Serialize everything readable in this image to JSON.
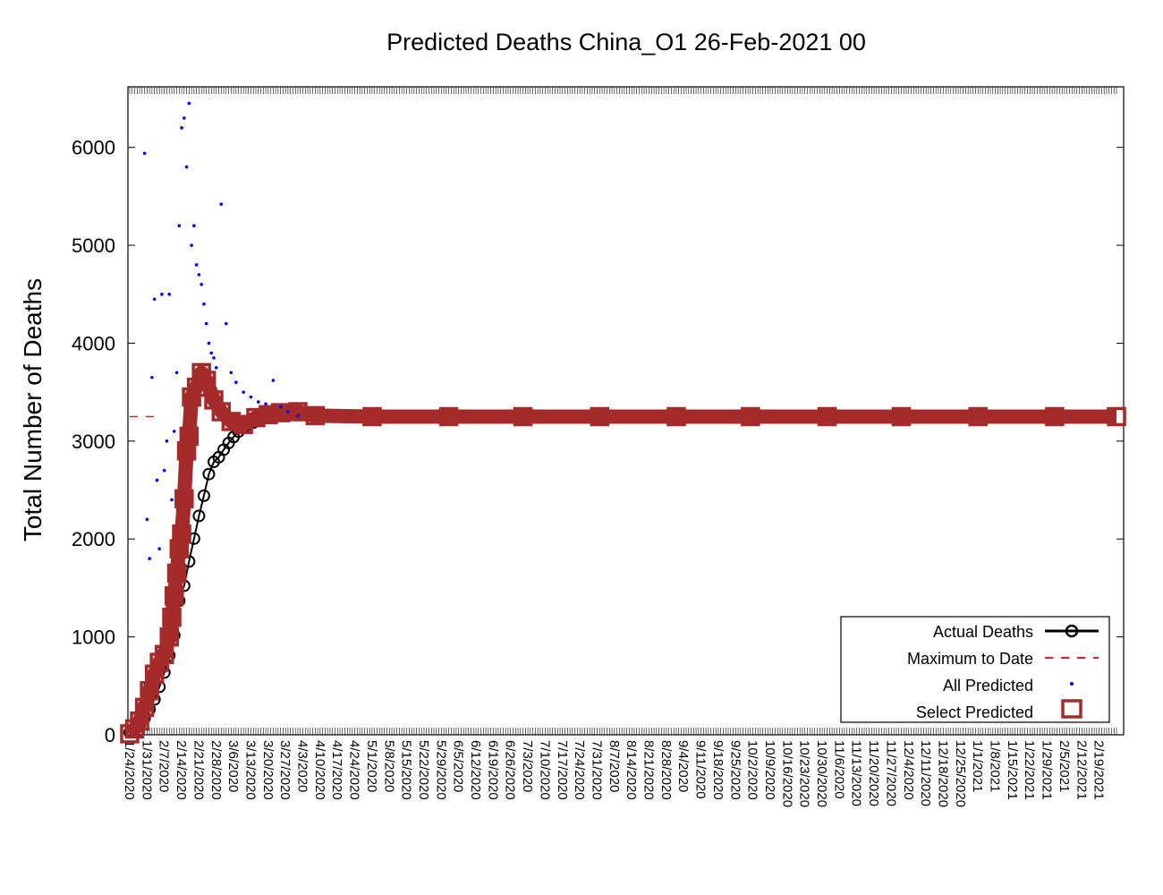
{
  "chart_data": {
    "type": "scatter",
    "title": "Predicted Deaths China_O1 26-Feb-2021 00",
    "ylabel": "Total Number of Deaths",
    "xlabel": "",
    "ylim": [
      0,
      6500
    ],
    "xlim": [
      "1/24/2020",
      "2/26/2021"
    ],
    "y_ticks": [
      0,
      1000,
      2000,
      3000,
      4000,
      5000,
      6000
    ],
    "x_tick_labels": [
      "1/24/2020",
      "1/31/2020",
      "2/7/2020",
      "2/14/2020",
      "2/21/2020",
      "2/28/2020",
      "3/6/2020",
      "3/13/2020",
      "3/20/2020",
      "3/27/2020",
      "4/3/2020",
      "4/10/2020",
      "4/17/2020",
      "4/24/2020",
      "5/1/2020",
      "5/8/2020",
      "5/15/2020",
      "5/22/2020",
      "5/29/2020",
      "6/5/2020",
      "6/12/2020",
      "6/19/2020",
      "6/26/2020",
      "7/3/2020",
      "7/10/2020",
      "7/17/2020",
      "7/24/2020",
      "7/31/2020",
      "8/7/2020",
      "8/14/2020",
      "8/21/2020",
      "8/28/2020",
      "9/4/2020",
      "9/11/2020",
      "9/18/2020",
      "9/25/2020",
      "10/2/2020",
      "10/9/2020",
      "10/16/2020",
      "10/23/2020",
      "10/30/2020",
      "11/6/2020",
      "11/13/2020",
      "11/20/2020",
      "11/27/2020",
      "12/4/2020",
      "12/11/2020",
      "12/18/2020",
      "12/25/2020",
      "1/1/2021",
      "1/8/2021",
      "1/15/2021",
      "1/22/2021",
      "1/29/2021",
      "2/5/2021",
      "2/12/2021",
      "2/19/2021"
    ],
    "grid": false,
    "legend_position": "bottom-right",
    "legend": [
      "Actual Deaths",
      "Maximum to Date",
      "All Predicted",
      "Select Predicted"
    ],
    "colors": {
      "actual": "#000000",
      "maximum": "#e41a1c",
      "all_predicted": "#0000ff",
      "select_predicted": "#a52a2a"
    },
    "maximum_to_date": 3250,
    "maximum_to_date_range": [
      "1/24/2020",
      "2/4/2020"
    ],
    "series": [
      {
        "name": "Actual Deaths",
        "style": "line-circle",
        "x": [
          "1/24/2020",
          "1/26/2020",
          "1/28/2020",
          "1/30/2020",
          "2/1/2020",
          "2/3/2020",
          "2/5/2020",
          "2/7/2020",
          "2/9/2020",
          "2/11/2020",
          "2/13/2020",
          "2/15/2020",
          "2/17/2020",
          "2/19/2020",
          "2/21/2020",
          "2/23/2020",
          "2/25/2020",
          "2/27/2020",
          "2/29/2020",
          "3/2/2020",
          "3/4/2020",
          "3/6/2020",
          "3/8/2020",
          "3/10/2020",
          "3/12/2020",
          "3/14/2020",
          "3/16/2020",
          "3/18/2020",
          "3/20/2020",
          "3/22/2020",
          "3/24/2020"
        ],
        "y": [
          25,
          56,
          106,
          170,
          259,
          361,
          490,
          636,
          811,
          1016,
          1370,
          1523,
          1770,
          2004,
          2236,
          2442,
          2663,
          2788,
          2835,
          2912,
          2981,
          3042,
          3097,
          3136,
          3169,
          3189,
          3213,
          3237,
          3245,
          3261,
          3277
        ]
      },
      {
        "name": "Select Predicted",
        "style": "square",
        "x": [
          "1/24/2020",
          "1/26/2020",
          "1/28/2020",
          "1/30/2020",
          "2/1/2020",
          "2/3/2020",
          "2/5/2020",
          "2/7/2020",
          "2/9/2020",
          "2/10/2020",
          "2/11/2020",
          "2/12/2020",
          "2/13/2020",
          "2/14/2020",
          "2/15/2020",
          "2/16/2020",
          "2/17/2020",
          "2/18/2020",
          "2/20/2020",
          "2/22/2020",
          "2/24/2020",
          "2/27/2020",
          "3/1/2020",
          "3/5/2020",
          "3/10/2020",
          "3/15/2020",
          "3/20/2020",
          "3/25/2020",
          "4/1/2020",
          "4/8/2020",
          "5/1/2020",
          "6/1/2020",
          "7/1/2020",
          "8/1/2020",
          "9/1/2020",
          "10/1/2020",
          "11/1/2020",
          "12/1/2020",
          "1/1/2021",
          "2/1/2021",
          "2/26/2021"
        ],
        "y": [
          10,
          60,
          140,
          280,
          450,
          620,
          740,
          820,
          1000,
          1200,
          1420,
          1650,
          1900,
          2050,
          2410,
          2900,
          3050,
          3450,
          3550,
          3700,
          3620,
          3420,
          3300,
          3200,
          3170,
          3240,
          3270,
          3290,
          3300,
          3260,
          3250,
          3250,
          3250,
          3250,
          3250,
          3250,
          3250,
          3250,
          3250,
          3250,
          3250
        ]
      },
      {
        "name": "All Predicted",
        "style": "dot",
        "x": [
          "1/30/2020",
          "1/31/2020",
          "2/1/2020",
          "2/2/2020",
          "2/3/2020",
          "2/4/2020",
          "2/5/2020",
          "2/6/2020",
          "2/7/2020",
          "2/8/2020",
          "2/9/2020",
          "2/10/2020",
          "2/11/2020",
          "2/12/2020",
          "2/13/2020",
          "2/14/2020",
          "2/15/2020",
          "2/16/2020",
          "2/17/2020",
          "2/18/2020",
          "2/19/2020",
          "2/20/2020",
          "2/21/2020",
          "2/22/2020",
          "2/23/2020",
          "2/24/2020",
          "2/25/2020",
          "2/26/2020",
          "2/27/2020",
          "2/28/2020",
          "3/1/2020",
          "3/3/2020",
          "3/5/2020",
          "3/7/2020",
          "3/10/2020",
          "3/13/2020",
          "3/16/2020",
          "3/19/2020",
          "3/22/2020",
          "3/25/2020",
          "3/28/2020",
          "4/1/2020"
        ],
        "y": [
          5940,
          2200,
          1800,
          3650,
          4450,
          2600,
          1900,
          4500,
          2700,
          3000,
          4500,
          2400,
          3100,
          3700,
          5200,
          6200,
          6300,
          5800,
          6450,
          5000,
          5200,
          4800,
          4700,
          4600,
          4400,
          4200,
          4000,
          3900,
          3850,
          3750,
          5420,
          4200,
          3700,
          3600,
          3500,
          3450,
          3400,
          3380,
          3620,
          3350,
          3300,
          3260
        ]
      }
    ]
  }
}
